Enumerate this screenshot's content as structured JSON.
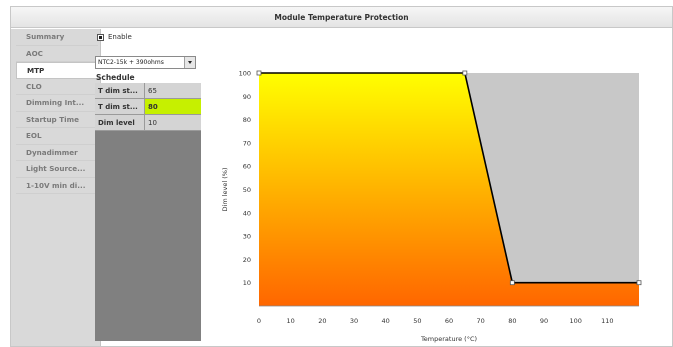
{
  "window": {
    "title": "Module Temperature Protection"
  },
  "sidebar": {
    "items": [
      {
        "label": "Summary",
        "active": false
      },
      {
        "label": "AOC",
        "active": false
      },
      {
        "label": "MTP",
        "active": true
      },
      {
        "label": "CLO",
        "active": false
      },
      {
        "label": "Dimming Int...",
        "active": false
      },
      {
        "label": "Startup Time",
        "active": false
      },
      {
        "label": "EOL",
        "active": false
      },
      {
        "label": "Dynadimmer",
        "active": false
      },
      {
        "label": "Light Source...",
        "active": false
      },
      {
        "label": "1-10V min di...",
        "active": false
      }
    ]
  },
  "enable": {
    "label": "Enable",
    "checked": true
  },
  "ntc_select": {
    "value": "NTC2-15k + 390ohms"
  },
  "schedule": {
    "title": "Schedule",
    "rows": [
      {
        "label": "T dim st...",
        "value": "65",
        "editing": false
      },
      {
        "label": "T dim st...",
        "value": "80",
        "editing": true
      },
      {
        "label": "Dim level",
        "value": "10",
        "editing": false
      }
    ]
  },
  "chart_data": {
    "type": "area",
    "xlabel": "Temperature (°C)",
    "ylabel": "Dim level (%)",
    "xlim": [
      0,
      120
    ],
    "ylim": [
      0,
      100
    ],
    "x_ticks": [
      0,
      10,
      20,
      30,
      40,
      50,
      60,
      70,
      80,
      90,
      100,
      110
    ],
    "y_ticks": [
      10,
      20,
      30,
      40,
      50,
      60,
      70,
      80,
      90,
      100
    ],
    "series": [
      {
        "x": [
          0,
          65,
          80,
          120
        ],
        "y": [
          100,
          100,
          10,
          10
        ]
      }
    ],
    "colors": {
      "fill_top": "#ffff00",
      "fill_bottom": "#ff6600",
      "background": "#c8c8c8",
      "line": "#000000"
    }
  }
}
